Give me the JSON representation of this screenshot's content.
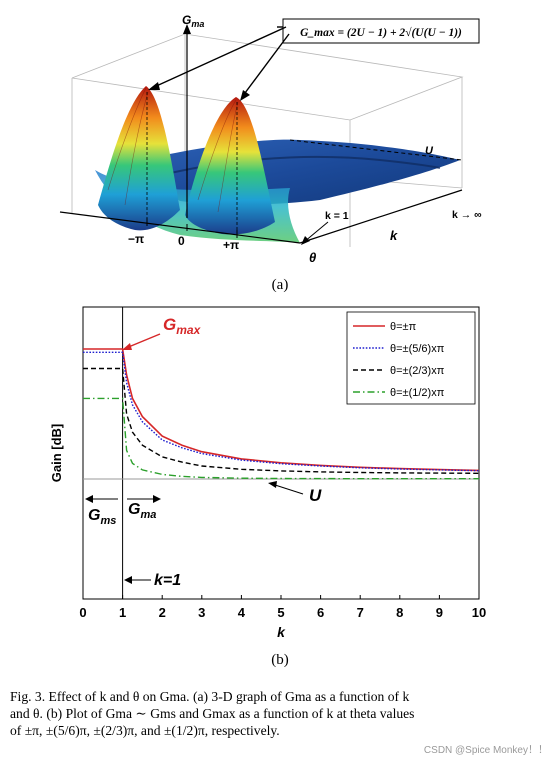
{
  "panel_a": {
    "z_axis_label": "G_ma",
    "formula_box": "G_max = (2U − 1) + 2√(U(U − 1))",
    "U_label": "U",
    "k_inf_label": "k → ∞",
    "k1_label": "k = 1",
    "k_axis_label": "k",
    "theta_axis_label": "θ",
    "tick_neg_pi": "−π",
    "tick_zero": "0",
    "tick_pos_pi": "+π",
    "panel_label": "(a)"
  },
  "panel_b": {
    "panel_label": "(b)",
    "gmax_label": "G_max",
    "gms_label": "G_ms",
    "gma_label": "G_ma",
    "U_label": "U",
    "k1_label": "k=1",
    "legend_colors": [
      "#d62728",
      "#1f1fcf",
      "#000000",
      "#2ca02c"
    ]
  },
  "chart_data": {
    "type": "line",
    "xlabel": "k",
    "ylabel": "Gain [dB]",
    "xlim": [
      0,
      10
    ],
    "xticks": [
      0,
      1,
      2,
      3,
      4,
      5,
      6,
      7,
      8,
      9,
      10
    ],
    "y_ticks_shown": false,
    "grid": false,
    "legend_position": "top-right",
    "x": [
      0,
      1,
      1.1,
      1.25,
      1.5,
      2,
      2.5,
      3,
      4,
      5,
      6,
      7,
      8,
      9,
      10
    ],
    "series": [
      {
        "name": "θ=±π",
        "color": "#d62728",
        "style": "solid",
        "values": [
          1.0,
          1.0,
          0.8,
          0.62,
          0.48,
          0.33,
          0.26,
          0.21,
          0.155,
          0.125,
          0.105,
          0.09,
          0.08,
          0.072,
          0.066
        ]
      },
      {
        "name": "θ=±(5/6)xπ",
        "color": "#1f1fcf",
        "style": "dotted",
        "values": [
          0.975,
          0.975,
          0.74,
          0.57,
          0.44,
          0.3,
          0.24,
          0.195,
          0.145,
          0.118,
          0.1,
          0.086,
          0.077,
          0.07,
          0.064
        ]
      },
      {
        "name": "θ=±(2/3)xπ",
        "color": "#000000",
        "style": "dashed",
        "values": [
          0.85,
          0.85,
          0.5,
          0.36,
          0.26,
          0.17,
          0.13,
          0.1,
          0.075,
          0.062,
          0.055,
          0.05,
          0.047,
          0.045,
          0.044
        ]
      },
      {
        "name": "θ=±(1/2)xπ",
        "color": "#2ca02c",
        "style": "dashdot",
        "values": [
          0.62,
          0.62,
          0.22,
          0.12,
          0.07,
          0.035,
          0.02,
          0.012,
          0.006,
          0.004,
          0.003,
          0.0025,
          0.002,
          0.002,
          0.002
        ]
      }
    ],
    "reference_level_U": 0.0
  },
  "caption": {
    "line1": "Fig. 3.   Effect of k and θ on Gma. (a) 3-D graph of Gma as a function of k",
    "line2": "and θ. (b) Plot of Gma ∼ Gms and Gmax as a function of k at theta values",
    "line3": "of ±π, ±(5/6)π, ±(2/3)π, and ±(1/2)π, respectively."
  },
  "watermark": "CSDN @Spice Monkey！！"
}
